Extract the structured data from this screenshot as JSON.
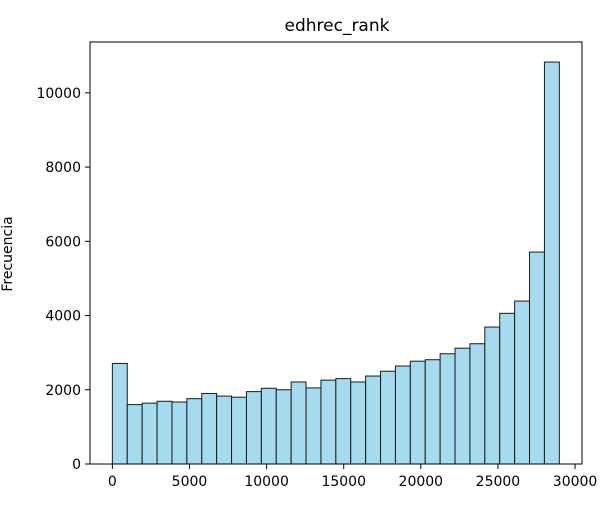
{
  "chart_data": {
    "type": "bar",
    "title": "edhrec_rank",
    "xlabel": "",
    "ylabel": "Frecuencia",
    "xlim": [
      -1450,
      30450
    ],
    "ylim": [
      0,
      11370
    ],
    "xticks": [
      0,
      5000,
      10000,
      15000,
      20000,
      25000,
      30000
    ],
    "yticks": [
      0,
      2000,
      4000,
      6000,
      8000,
      10000
    ],
    "grid": false,
    "bin_start": 0,
    "bin_width": 966,
    "values": [
      2710,
      1600,
      1640,
      1690,
      1670,
      1760,
      1900,
      1830,
      1800,
      1950,
      2040,
      2000,
      2210,
      2050,
      2260,
      2300,
      2210,
      2370,
      2500,
      2640,
      2770,
      2810,
      2970,
      3120,
      3240,
      3690,
      4060,
      4390,
      5710,
      10830
    ],
    "colors": {
      "bar_fill": "#a6dbef",
      "bar_edge": "#1a1a1a",
      "axis": "#000000"
    }
  }
}
